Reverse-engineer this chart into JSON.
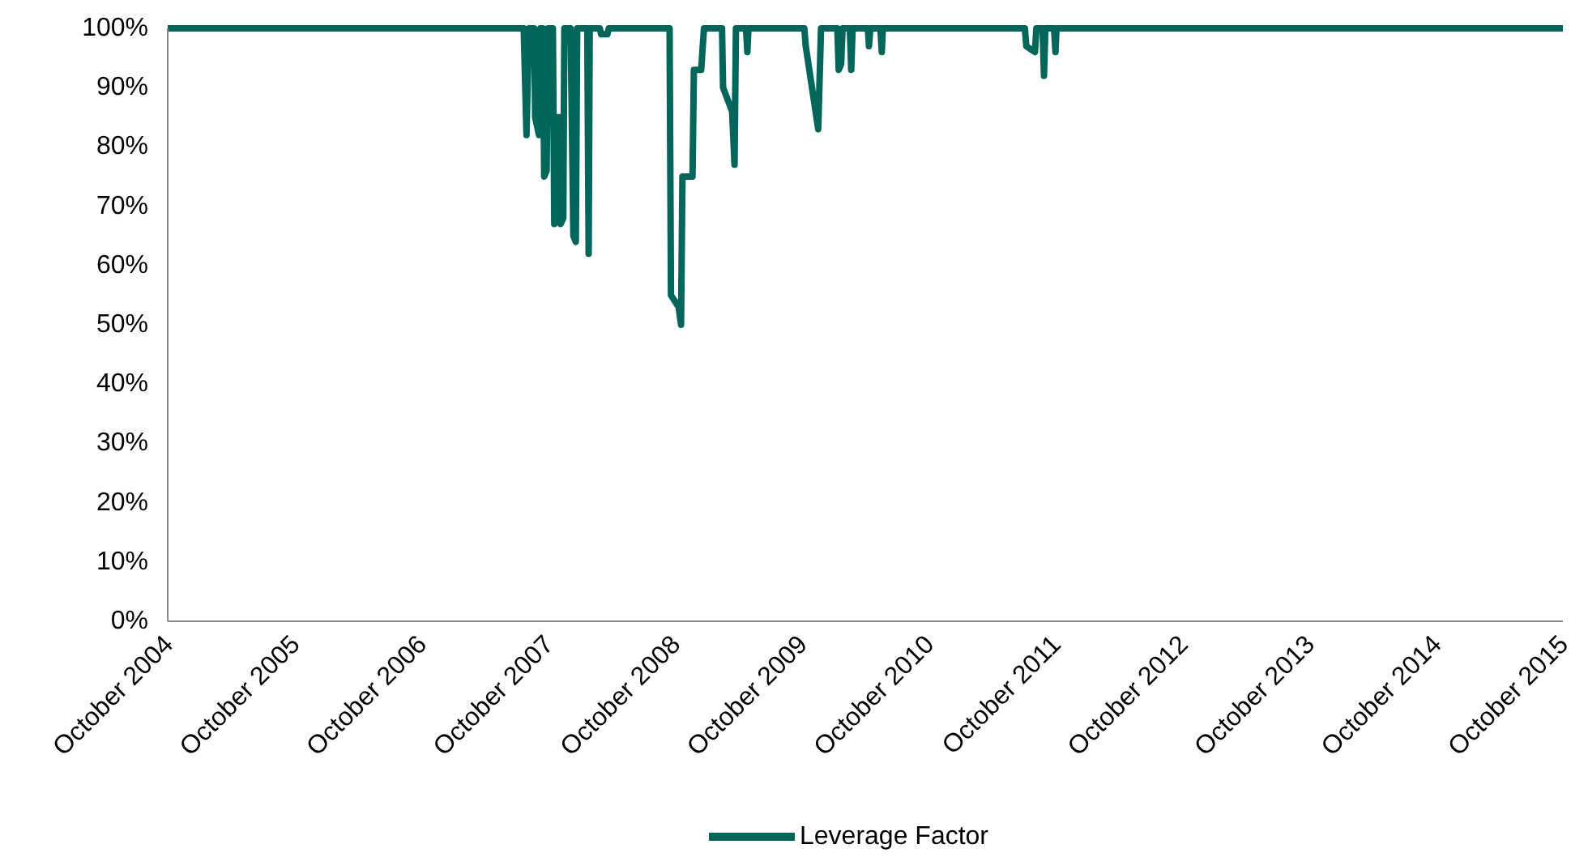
{
  "chart_data": {
    "type": "line",
    "x": [
      "2004-10-01",
      "2007-07-23",
      "2007-07-31",
      "2007-08-07",
      "2007-08-22",
      "2007-08-25",
      "2007-09-05",
      "2007-09-09",
      "2007-09-16",
      "2007-09-20",
      "2007-09-27",
      "2007-10-01",
      "2007-10-15",
      "2007-10-19",
      "2007-10-23",
      "2007-11-03",
      "2007-11-06",
      "2007-11-14",
      "2007-11-17",
      "2007-12-05",
      "2007-12-13",
      "2007-12-20",
      "2007-12-24",
      "2008-01-22",
      "2008-01-26",
      "2008-01-29",
      "2008-02-27",
      "2008-03-02",
      "2008-03-20",
      "2008-03-24",
      "2008-09-15",
      "2008-09-19",
      "2008-10-11",
      "2008-10-18",
      "2008-10-22",
      "2008-11-20",
      "2008-11-24",
      "2008-12-15",
      "2008-12-23",
      "2009-02-13",
      "2009-02-16",
      "2009-03-14",
      "2009-03-21",
      "2009-03-25",
      "2009-04-23",
      "2009-04-27",
      "2009-04-30",
      "2009-10-08",
      "2009-10-12",
      "2009-11-17",
      "2009-11-25",
      "2010-01-11",
      "2010-01-15",
      "2010-01-22",
      "2010-01-26",
      "2010-02-16",
      "2010-02-20",
      "2010-02-24",
      "2010-04-09",
      "2010-04-12",
      "2010-04-16",
      "2010-05-15",
      "2010-05-19",
      "2010-05-22",
      "2011-07-05",
      "2011-07-09",
      "2011-08-03",
      "2011-08-07",
      "2011-08-25",
      "2011-08-29",
      "2011-09-02",
      "2011-09-27",
      "2011-10-01",
      "2011-10-04",
      "2015-10-01"
    ],
    "series": [
      {
        "name": "Leverage Factor",
        "color": "#03665a",
        "values": [
          100,
          100,
          82,
          100,
          100,
          85,
          82,
          100,
          100,
          75,
          76,
          100,
          100,
          67,
          85,
          85,
          67,
          68,
          100,
          100,
          65,
          64,
          100,
          100,
          62,
          100,
          100,
          99,
          99,
          100,
          100,
          55,
          53,
          50,
          75,
          75,
          93,
          93,
          100,
          100,
          90,
          86,
          77,
          100,
          100,
          96,
          100,
          100,
          97,
          83,
          100,
          100,
          93,
          94,
          100,
          100,
          93,
          100,
          100,
          97,
          100,
          100,
          96,
          100,
          100,
          97,
          96,
          100,
          100,
          92,
          100,
          100,
          96,
          100,
          100
        ]
      }
    ],
    "xlim": [
      "2004-10-01",
      "2015-10-01"
    ],
    "xticks": [
      {
        "value": "2004-10",
        "label": "October 2004"
      },
      {
        "value": "2005-10",
        "label": "October 2005"
      },
      {
        "value": "2006-10",
        "label": "October 2006"
      },
      {
        "value": "2007-10",
        "label": "October 2007"
      },
      {
        "value": "2008-10",
        "label": "October 2008"
      },
      {
        "value": "2009-10",
        "label": "October 2009"
      },
      {
        "value": "2010-10",
        "label": "October 2010"
      },
      {
        "value": "2011-10",
        "label": "October 2011"
      },
      {
        "value": "2012-10",
        "label": "October 2012"
      },
      {
        "value": "2013-10",
        "label": "October 2013"
      },
      {
        "value": "2014-10",
        "label": "October 2014"
      },
      {
        "value": "2015-10",
        "label": "October 2015"
      }
    ],
    "ylim": [
      0,
      100
    ],
    "yticks": [
      {
        "value": 0,
        "label": "0%"
      },
      {
        "value": 10,
        "label": "10%"
      },
      {
        "value": 20,
        "label": "20%"
      },
      {
        "value": 30,
        "label": "30%"
      },
      {
        "value": 40,
        "label": "40%"
      },
      {
        "value": 50,
        "label": "50%"
      },
      {
        "value": 60,
        "label": "60%"
      },
      {
        "value": 70,
        "label": "70%"
      },
      {
        "value": 80,
        "label": "80%"
      },
      {
        "value": 90,
        "label": "90%"
      },
      {
        "value": 100,
        "label": "100%"
      }
    ],
    "grid": false,
    "legend": "bottom",
    "marker": "none",
    "line_style": "solid"
  }
}
